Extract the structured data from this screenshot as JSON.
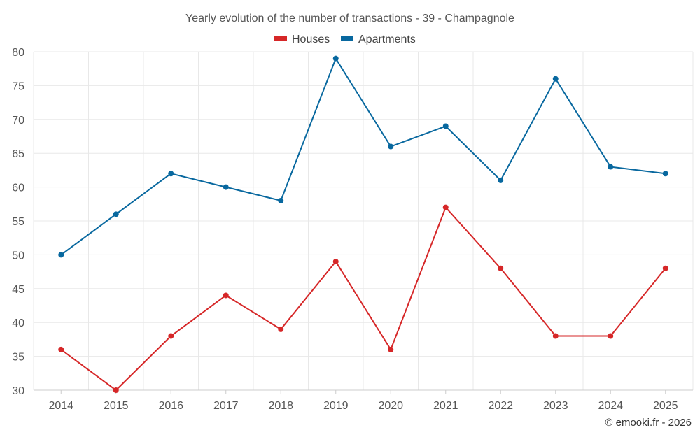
{
  "chart_data": {
    "type": "line",
    "title": "Yearly evolution of the number of transactions - 39 - Champagnole",
    "xlabel": "",
    "ylabel": "",
    "categories": [
      "2014",
      "2015",
      "2016",
      "2017",
      "2018",
      "2019",
      "2020",
      "2021",
      "2022",
      "2023",
      "2024",
      "2025"
    ],
    "ylim": [
      30,
      80
    ],
    "yticks": [
      30,
      35,
      40,
      45,
      50,
      55,
      60,
      65,
      70,
      75,
      80
    ],
    "grid": true,
    "legend_position": "top-center",
    "series": [
      {
        "name": "Houses",
        "color": "#d62728",
        "values": [
          36,
          30,
          38,
          44,
          39,
          49,
          36,
          57,
          48,
          38,
          38,
          48
        ]
      },
      {
        "name": "Apartments",
        "color": "#08689f",
        "values": [
          50,
          56,
          62,
          60,
          58,
          79,
          66,
          69,
          61,
          76,
          63,
          62
        ]
      }
    ],
    "credit": "© emooki.fr - 2026"
  }
}
